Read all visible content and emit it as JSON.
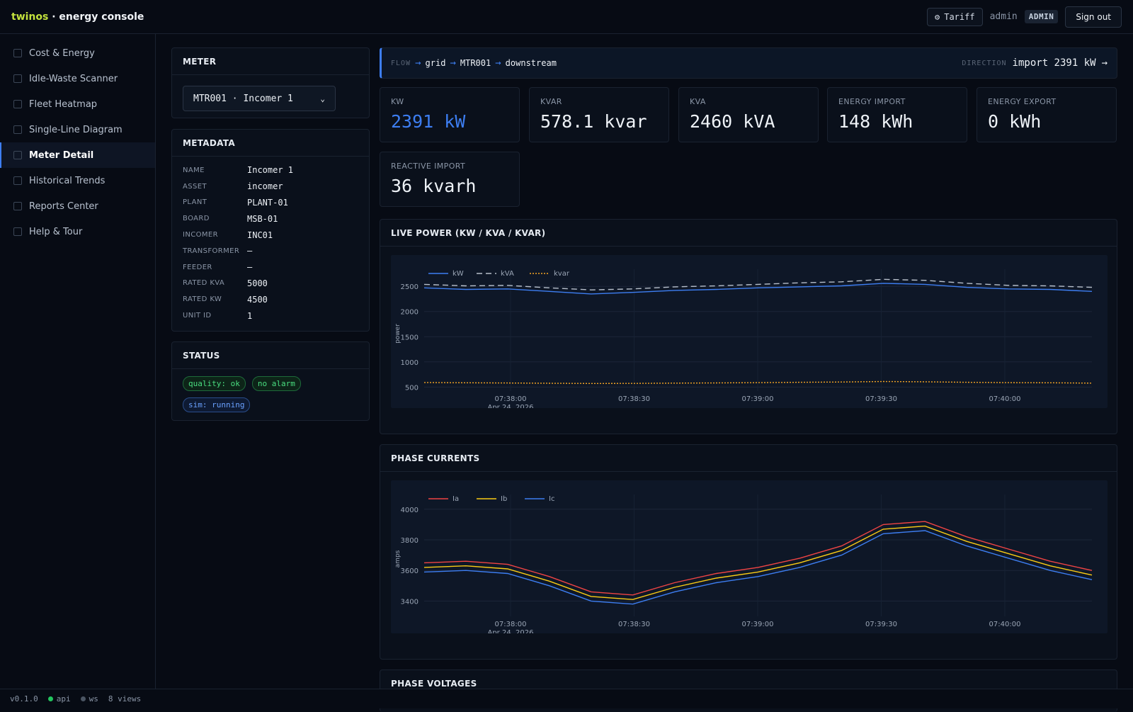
{
  "header": {
    "brand_accent": "twinos",
    "brand_rest": " · energy console",
    "tariff_label": "Tariff",
    "user": "admin",
    "role": "ADMIN",
    "signout_label": "Sign out"
  },
  "sidebar": {
    "items": [
      {
        "label": "Cost & Energy"
      },
      {
        "label": "Idle-Waste Scanner"
      },
      {
        "label": "Fleet Heatmap"
      },
      {
        "label": "Single-Line Diagram"
      },
      {
        "label": "Meter Detail"
      },
      {
        "label": "Historical Trends"
      },
      {
        "label": "Reports Center"
      },
      {
        "label": "Help & Tour"
      }
    ],
    "active_index": 4
  },
  "footer": {
    "version": "v0.1.0",
    "api": "api",
    "ws": "ws",
    "views": "8 views",
    "api_color": "#22c55e",
    "ws_color": "#4b5563"
  },
  "meter_panel": {
    "title": "METER",
    "selected": "MTR001 · Incomer 1"
  },
  "metadata_panel": {
    "title": "METADATA",
    "rows": [
      {
        "key": "NAME",
        "value": "Incomer 1"
      },
      {
        "key": "ASSET",
        "value": "incomer"
      },
      {
        "key": "PLANT",
        "value": "PLANT-01"
      },
      {
        "key": "BOARD",
        "value": "MSB-01"
      },
      {
        "key": "INCOMER",
        "value": "INC01"
      },
      {
        "key": "TRANSFORMER",
        "value": "—"
      },
      {
        "key": "FEEDER",
        "value": "—"
      },
      {
        "key": "RATED KVA",
        "value": "5000"
      },
      {
        "key": "RATED KW",
        "value": "4500"
      },
      {
        "key": "UNIT ID",
        "value": "1"
      }
    ]
  },
  "status_panel": {
    "title": "STATUS",
    "badges": [
      {
        "label": "quality: ok",
        "kind": "ok"
      },
      {
        "label": "no alarm",
        "kind": "ok"
      },
      {
        "label": "sim: running",
        "kind": "run"
      }
    ]
  },
  "flow": {
    "label": "FLOW",
    "nodes": [
      "grid",
      "MTR001",
      "downstream"
    ],
    "direction_label": "DIRECTION",
    "direction_value": "import 2391 kW"
  },
  "kpis": [
    {
      "label": "KW",
      "value": "2391 kW",
      "highlight": true
    },
    {
      "label": "KVAR",
      "value": "578.1 kvar"
    },
    {
      "label": "KVA",
      "value": "2460 kVA"
    },
    {
      "label": "ENERGY IMPORT",
      "value": "148 kWh"
    },
    {
      "label": "ENERGY EXPORT",
      "value": "0 kWh"
    },
    {
      "label": "REACTIVE IMPORT",
      "value": "36 kvarh"
    }
  ],
  "sections": {
    "live_power_title": "LIVE POWER (KW / KVA / KVAR)",
    "phase_currents_title": "PHASE CURRENTS",
    "phase_voltages_title": "PHASE VOLTAGES"
  },
  "chart_data": [
    {
      "type": "line",
      "title": "LIVE POWER (KW / KVA / KVAR)",
      "xlabel": "",
      "ylabel": "power",
      "ylim": [
        420,
        2700
      ],
      "yticks": [
        500,
        1000,
        1500,
        2000,
        2500
      ],
      "x_tick_labels": [
        "07:38:00",
        "07:38:30",
        "07:39:00",
        "07:39:30",
        "07:40:00"
      ],
      "x_date_label": "Apr 24, 2026",
      "x": [
        0,
        10,
        20,
        30,
        40,
        50,
        60,
        70,
        80,
        90,
        100,
        110,
        120,
        130,
        140,
        150,
        160
      ],
      "series": [
        {
          "name": "kW",
          "color": "#3d7ef2",
          "dash": "solid",
          "values": [
            2470,
            2440,
            2450,
            2400,
            2350,
            2380,
            2420,
            2440,
            2470,
            2490,
            2510,
            2560,
            2540,
            2480,
            2450,
            2440,
            2400
          ]
        },
        {
          "name": "kVA",
          "color": "#b8c0cc",
          "dash": "dash",
          "values": [
            2540,
            2510,
            2520,
            2470,
            2430,
            2450,
            2490,
            2510,
            2540,
            2570,
            2590,
            2640,
            2620,
            2560,
            2520,
            2510,
            2480
          ]
        },
        {
          "name": "kvar",
          "color": "#f5a524",
          "dash": "dot",
          "values": [
            590,
            585,
            580,
            575,
            570,
            572,
            578,
            582,
            588,
            595,
            600,
            610,
            605,
            595,
            588,
            584,
            578
          ]
        }
      ],
      "legend": "top-left",
      "grid": true
    },
    {
      "type": "line",
      "title": "PHASE CURRENTS",
      "xlabel": "",
      "ylabel": "amps",
      "ylim": [
        3300,
        4050
      ],
      "yticks": [
        3400,
        3600,
        3800,
        4000
      ],
      "x_tick_labels": [
        "07:38:00",
        "07:38:30",
        "07:39:00",
        "07:39:30",
        "07:40:00"
      ],
      "x_date_label": "Apr 24, 2026",
      "x": [
        0,
        10,
        20,
        30,
        40,
        50,
        60,
        70,
        80,
        90,
        100,
        110,
        120,
        130,
        140,
        150,
        160
      ],
      "series": [
        {
          "name": "Ia",
          "color": "#ef4444",
          "values": [
            3650,
            3660,
            3640,
            3560,
            3460,
            3440,
            3520,
            3580,
            3620,
            3680,
            3760,
            3900,
            3920,
            3820,
            3740,
            3660,
            3600
          ]
        },
        {
          "name": "Ib",
          "color": "#facc15",
          "values": [
            3620,
            3630,
            3610,
            3530,
            3430,
            3410,
            3490,
            3550,
            3590,
            3650,
            3730,
            3870,
            3890,
            3790,
            3710,
            3630,
            3570
          ]
        },
        {
          "name": "Ic",
          "color": "#3d7ef2",
          "values": [
            3590,
            3600,
            3580,
            3500,
            3400,
            3380,
            3460,
            3520,
            3560,
            3620,
            3700,
            3840,
            3860,
            3760,
            3680,
            3600,
            3540
          ]
        }
      ],
      "legend": "top-left",
      "grid": true
    }
  ]
}
